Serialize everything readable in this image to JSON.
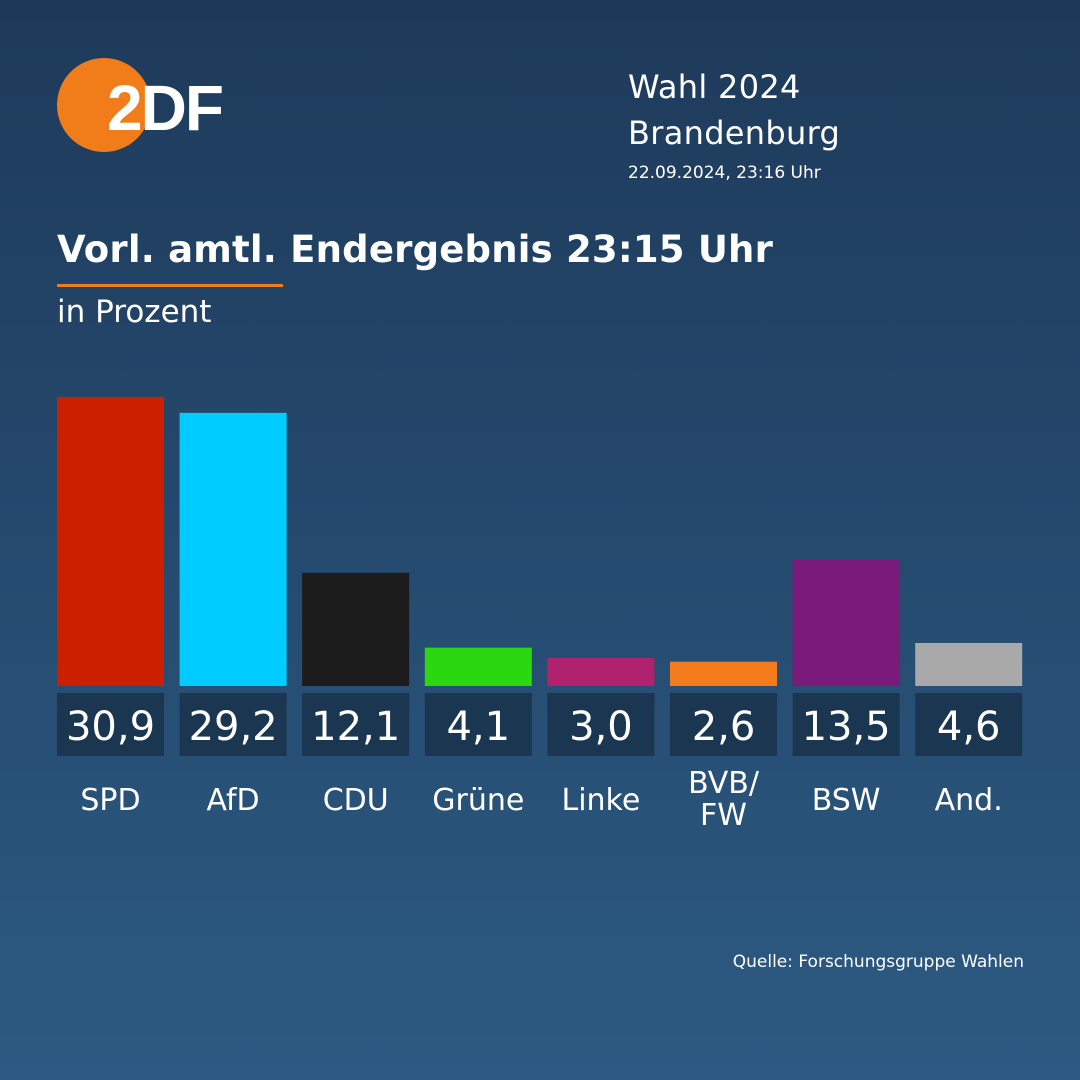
{
  "brand": {
    "logo_text": "2DF",
    "logo_color": "#f07d1a"
  },
  "header": {
    "election": "Wahl 2024",
    "region": "Brandenburg",
    "timestamp": "22.09.2024, 23:16 Uhr"
  },
  "source": "Quelle: Forschungsgruppe Wahlen",
  "chart_data": {
    "type": "bar",
    "title": "Vorl. amtl. Endergebnis 23:15 Uhr",
    "subtitle": "in Prozent",
    "categories": [
      "SPD",
      "AfD",
      "CDU",
      "Grüne",
      "Linke",
      "BVB/ FW",
      "BSW",
      "And."
    ],
    "values": [
      30.9,
      29.2,
      12.1,
      4.1,
      3.0,
      2.6,
      13.5,
      4.6
    ],
    "value_labels": [
      "30,9",
      "29,2",
      "12,1",
      "4,1",
      "3,0",
      "2,6",
      "13,5",
      "4,6"
    ],
    "colors": [
      "#cc1f00",
      "#00ccff",
      "#1c1c1c",
      "#2bd80f",
      "#b0226d",
      "#f47c1c",
      "#7a1a7a",
      "#a9a9a9"
    ],
    "label_box_color": "#1b3650",
    "accent_color": "#f07d1a",
    "ylim": [
      0,
      31
    ],
    "grid": false
  }
}
